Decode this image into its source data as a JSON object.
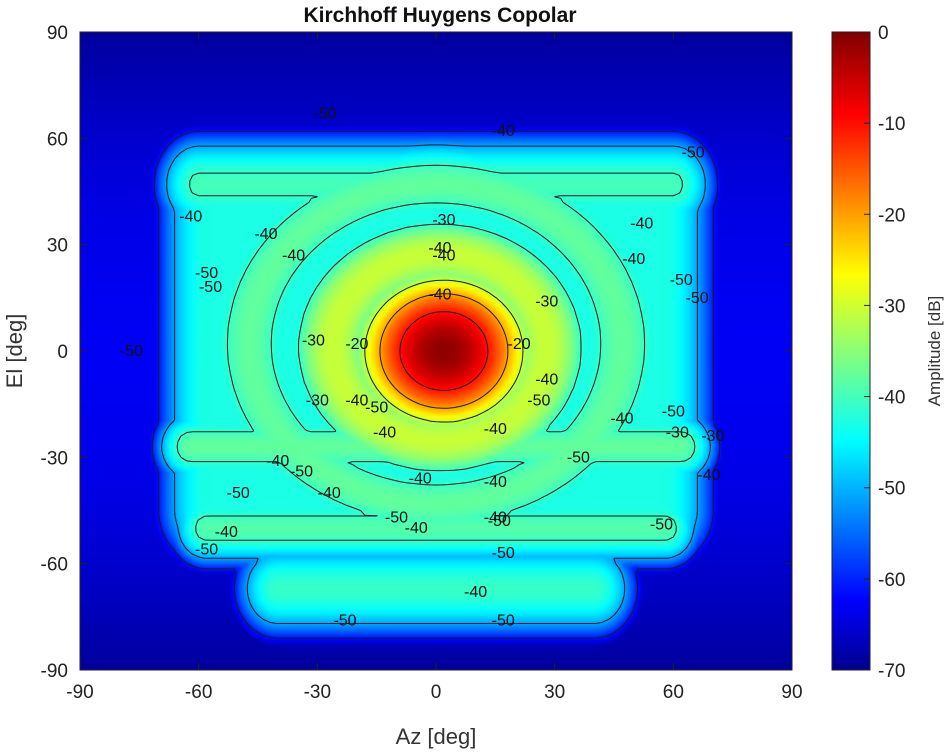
{
  "chart_data": {
    "type": "heatmap",
    "title": "Kirchhoff Huygens Copolar",
    "xlabel": "Az [deg]",
    "ylabel": "El [deg]",
    "xlim": [
      -90,
      90
    ],
    "ylim": [
      -90,
      90
    ],
    "xticks": [
      "-90",
      "-60",
      "-30",
      "0",
      "30",
      "60",
      "90"
    ],
    "yticks": [
      "90",
      "60",
      "30",
      "0",
      "-30",
      "-60",
      "-90"
    ],
    "colorbar": {
      "label": "Amplitude [dB]",
      "range": [
        -70,
        0
      ],
      "ticks": [
        "0",
        "-10",
        "-20",
        "-30",
        "-40",
        "-50",
        "-60",
        "-70"
      ],
      "colormap": "jet"
    },
    "contour_levels": [
      -60,
      -50,
      -40,
      -30,
      -20,
      -10
    ],
    "contour_labels": [
      {
        "text": "-50",
        "az": -28,
        "el": 67
      },
      {
        "text": "-40",
        "az": 17,
        "el": 62
      },
      {
        "text": "-50",
        "az": 65,
        "el": 56
      },
      {
        "text": "-40",
        "az": -62,
        "el": 38
      },
      {
        "text": "-40",
        "az": -43,
        "el": 33
      },
      {
        "text": "-40",
        "az": -36,
        "el": 27
      },
      {
        "text": "-30",
        "az": 2,
        "el": 37
      },
      {
        "text": "-40",
        "az": 1,
        "el": 29
      },
      {
        "text": "-40",
        "az": 2,
        "el": 27
      },
      {
        "text": "-40",
        "az": 52,
        "el": 36
      },
      {
        "text": "-40",
        "az": 50,
        "el": 26
      },
      {
        "text": "-50",
        "az": -58,
        "el": 22
      },
      {
        "text": "-50",
        "az": -57,
        "el": 18
      },
      {
        "text": "-50",
        "az": 62,
        "el": 20
      },
      {
        "text": "-50",
        "az": 66,
        "el": 15
      },
      {
        "text": "-40",
        "az": 1,
        "el": 16
      },
      {
        "text": "-30",
        "az": 28,
        "el": 14
      },
      {
        "text": "-30",
        "az": -31,
        "el": 3
      },
      {
        "text": "-20",
        "az": -20,
        "el": 2
      },
      {
        "text": "-20",
        "az": 21,
        "el": 2
      },
      {
        "text": "-50",
        "az": -77,
        "el": 0
      },
      {
        "text": "-40",
        "az": 28,
        "el": -8
      },
      {
        "text": "-30",
        "az": -30,
        "el": -14
      },
      {
        "text": "-40",
        "az": -20,
        "el": -14
      },
      {
        "text": "-50",
        "az": -15,
        "el": -16
      },
      {
        "text": "-50",
        "az": 26,
        "el": -14
      },
      {
        "text": "-40",
        "az": -13,
        "el": -23
      },
      {
        "text": "-40",
        "az": 15,
        "el": -22
      },
      {
        "text": "-40",
        "az": 47,
        "el": -19
      },
      {
        "text": "-50",
        "az": 60,
        "el": -17
      },
      {
        "text": "-30",
        "az": 61,
        "el": -23
      },
      {
        "text": "-30",
        "az": 70,
        "el": -24
      },
      {
        "text": "-50",
        "az": -34,
        "el": -34
      },
      {
        "text": "-40",
        "az": -40,
        "el": -31
      },
      {
        "text": "-50",
        "az": 36,
        "el": -30
      },
      {
        "text": "-40",
        "az": -27,
        "el": -40
      },
      {
        "text": "-40",
        "az": -4,
        "el": -36
      },
      {
        "text": "-40",
        "az": 15,
        "el": -37
      },
      {
        "text": "-40",
        "az": 69,
        "el": -35
      },
      {
        "text": "-50",
        "az": -50,
        "el": -40
      },
      {
        "text": "-50",
        "az": -10,
        "el": -47
      },
      {
        "text": "-40",
        "az": -5,
        "el": -50
      },
      {
        "text": "-40",
        "az": 15,
        "el": -47
      },
      {
        "text": "-50",
        "az": 16,
        "el": -48
      },
      {
        "text": "-50",
        "az": 57,
        "el": -49
      },
      {
        "text": "-40",
        "az": -53,
        "el": -51
      },
      {
        "text": "-50",
        "az": -58,
        "el": -56
      },
      {
        "text": "-50",
        "az": 17,
        "el": -57
      },
      {
        "text": "-40",
        "az": 10,
        "el": -68
      },
      {
        "text": "-50",
        "az": -23,
        "el": -76
      },
      {
        "text": "-50",
        "az": 17,
        "el": -76
      }
    ]
  }
}
